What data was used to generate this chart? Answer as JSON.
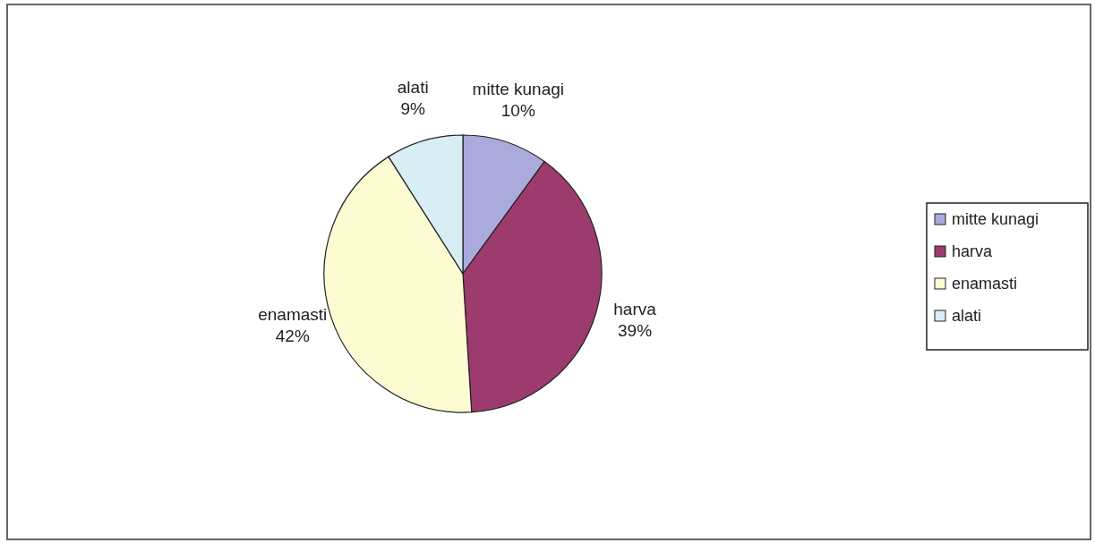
{
  "chart_data": {
    "type": "pie",
    "categories": [
      "mitte kunagi",
      "harva",
      "enamasti",
      "alati"
    ],
    "values": [
      10,
      39,
      42,
      9
    ],
    "colors": [
      "#aaaadc",
      "#9e3b6e",
      "#fdfbd2",
      "#d8eef5"
    ],
    "value_labels": [
      "10%",
      "39%",
      "42%",
      "9%"
    ],
    "legend": "right"
  }
}
